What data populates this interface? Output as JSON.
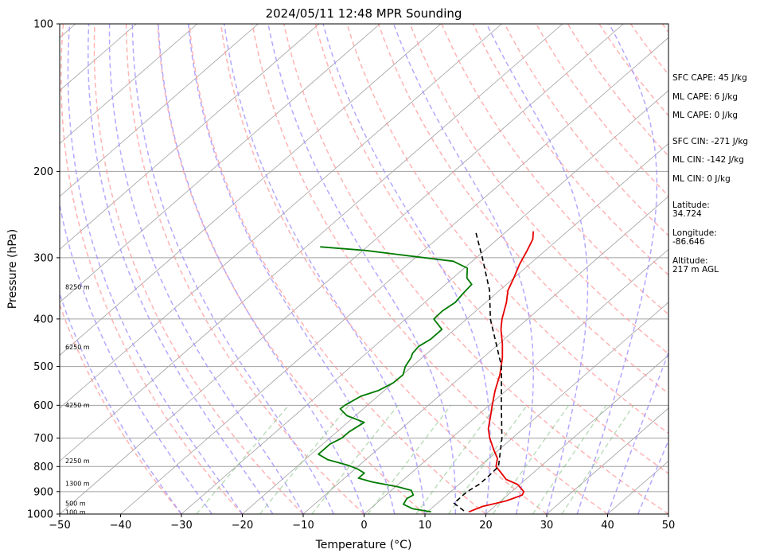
{
  "chart_data": {
    "type": "line",
    "title": "2024/05/11 12:48 MPR Sounding",
    "xlabel": "Temperature (°C)",
    "ylabel": "Pressure (hPa)",
    "xlim": [
      -50,
      50
    ],
    "ylim": [
      1000,
      100
    ],
    "y_scale": "log",
    "x_ticks": [
      "−50",
      "−40",
      "−30",
      "−20",
      "−10",
      "0",
      "10",
      "20",
      "30",
      "40",
      "50"
    ],
    "x_tick_values": [
      -50,
      -40,
      -30,
      -20,
      -10,
      0,
      10,
      20,
      30,
      40,
      50
    ],
    "y_ticks": [
      "100",
      "200",
      "300",
      "400",
      "500",
      "600",
      "700",
      "800",
      "900",
      "1000"
    ],
    "y_tick_values": [
      100,
      200,
      300,
      400,
      500,
      600,
      700,
      800,
      900,
      1000
    ],
    "grid": true,
    "skew": "skew-T log-p",
    "background_lines": [
      "isotherms",
      "dry adiabats",
      "moist adiabats",
      "mixing ratio lines"
    ],
    "colors": {
      "temperature": "#e60000",
      "dewpoint": "#007a00",
      "parcel": "#000000",
      "isotherm": "#a0a0a0",
      "dry_adiabat": "#ff9a9a",
      "moist_adiabat": "#9a8cff",
      "mixing_ratio": "#80c080"
    },
    "height_labels": [
      {
        "text": "100 m",
        "pressure": 990
      },
      {
        "text": "500 m",
        "pressure": 950
      },
      {
        "text": "1300 m",
        "pressure": 866
      },
      {
        "text": "2250 m",
        "pressure": 779
      },
      {
        "text": "4250 m",
        "pressure": 599
      },
      {
        "text": "6250 m",
        "pressure": 456
      },
      {
        "text": "8250 m",
        "pressure": 344
      }
    ],
    "series": [
      {
        "key": "temperature",
        "points": [
          [
            990,
            16.8
          ],
          [
            965,
            18.0
          ],
          [
            940,
            20.9
          ],
          [
            915,
            22.4
          ],
          [
            900,
            22.0
          ],
          [
            870,
            19.6
          ],
          [
            850,
            16.8
          ],
          [
            820,
            14.4
          ],
          [
            800,
            12.7
          ],
          [
            770,
            11.4
          ],
          [
            740,
            9.2
          ],
          [
            700,
            6.3
          ],
          [
            670,
            4.3
          ],
          [
            630,
            2.2
          ],
          [
            600,
            0.5
          ],
          [
            560,
            -1.8
          ],
          [
            520,
            -4.0
          ],
          [
            480,
            -6.8
          ],
          [
            450,
            -9.4
          ],
          [
            420,
            -12.4
          ],
          [
            400,
            -14.2
          ],
          [
            370,
            -16.6
          ],
          [
            350,
            -18.6
          ],
          [
            330,
            -20.0
          ],
          [
            310,
            -21.6
          ],
          [
            290,
            -23.0
          ],
          [
            275,
            -24.2
          ],
          [
            265,
            -25.6
          ]
        ]
      },
      {
        "key": "dewpoint",
        "points": [
          [
            990,
            10.6
          ],
          [
            975,
            6.9
          ],
          [
            955,
            4.6
          ],
          [
            930,
            4.1
          ],
          [
            915,
            4.5
          ],
          [
            895,
            3.3
          ],
          [
            880,
            0.4
          ],
          [
            860,
            -4.7
          ],
          [
            845,
            -7.7
          ],
          [
            825,
            -7.7
          ],
          [
            810,
            -9.5
          ],
          [
            795,
            -11.9
          ],
          [
            775,
            -16.2
          ],
          [
            755,
            -18.8
          ],
          [
            740,
            -18.8
          ],
          [
            720,
            -18.8
          ],
          [
            700,
            -18.0
          ],
          [
            680,
            -18.0
          ],
          [
            650,
            -17.3
          ],
          [
            630,
            -21.4
          ],
          [
            610,
            -23.8
          ],
          [
            600,
            -23.7
          ],
          [
            575,
            -22.8
          ],
          [
            560,
            -21.0
          ],
          [
            540,
            -20.0
          ],
          [
            520,
            -19.9
          ],
          [
            500,
            -21.1
          ],
          [
            480,
            -21.8
          ],
          [
            470,
            -22.4
          ],
          [
            455,
            -22.7
          ],
          [
            440,
            -22.1
          ],
          [
            420,
            -22.1
          ],
          [
            400,
            -25.4
          ],
          [
            385,
            -25.5
          ],
          [
            370,
            -25.0
          ],
          [
            355,
            -25.4
          ],
          [
            340,
            -25.7
          ],
          [
            330,
            -27.7
          ],
          [
            315,
            -29.5
          ],
          [
            305,
            -33.1
          ],
          [
            295,
            -44.0
          ],
          [
            290,
            -49.5
          ],
          [
            285,
            -57.7
          ]
        ]
      },
      {
        "key": "parcel",
        "points": [
          [
            985,
            15.8
          ],
          [
            950,
            12.7
          ],
          [
            900,
            12.7
          ],
          [
            870,
            13.3
          ],
          [
            840,
            13.3
          ],
          [
            800,
            13.1
          ],
          [
            700,
            8.3
          ],
          [
            600,
            2.0
          ],
          [
            500,
            -5.3
          ],
          [
            400,
            -16.1
          ],
          [
            350,
            -21.6
          ],
          [
            300,
            -29.0
          ],
          [
            265,
            -35.1
          ]
        ]
      }
    ]
  },
  "side_info": {
    "sfc_cape": "SFC CAPE: 45 J/kg",
    "ml_cape_1": "ML CAPE: 6 J/kg",
    "ml_cape_2": "ML CAPE: 0 J/kg",
    "sfc_cin": "SFC CIN: -271 J/kg",
    "ml_cin_1": "ML CIN: -142 J/kg",
    "ml_cin_2": "ML CIN: 0 J/kg",
    "latitude_label": "Latitude:",
    "latitude_value": "34.724",
    "longitude_label": "Longitude:",
    "longitude_value": "-86.646",
    "altitude_label": "Altitude:",
    "altitude_value": "217 m AGL"
  }
}
